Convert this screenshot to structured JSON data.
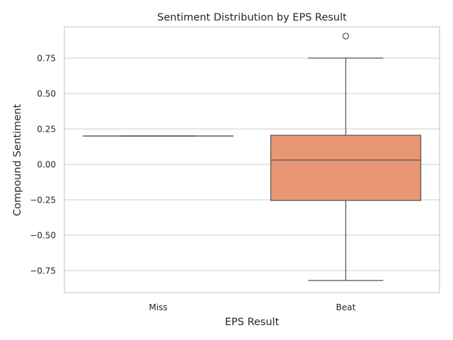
{
  "chart_data": {
    "type": "box",
    "title": "Sentiment Distribution by EPS Result",
    "xlabel": "EPS Result",
    "ylabel": "Compound Sentiment",
    "categories": [
      "Miss",
      "Beat"
    ],
    "ylim": [
      -0.905,
      0.97
    ],
    "yticks": [
      0.75,
      0.5,
      0.25,
      0.0,
      -0.25,
      -0.5,
      -0.75
    ],
    "ytick_labels": [
      "0.75",
      "0.50",
      "0.25",
      "0.00",
      "−0.25",
      "−0.50",
      "−0.75"
    ],
    "grid": true,
    "boxes": [
      {
        "category": "Miss",
        "whisker_low": 0.2,
        "q1": 0.2,
        "median": 0.2,
        "q3": 0.2,
        "whisker_high": 0.2,
        "outliers": [],
        "fill": "#ffffff"
      },
      {
        "category": "Beat",
        "whisker_low": -0.82,
        "q1": -0.255,
        "median": 0.03,
        "q3": 0.205,
        "whisker_high": 0.75,
        "outliers": [
          0.905
        ],
        "fill": "#e99675"
      }
    ]
  }
}
